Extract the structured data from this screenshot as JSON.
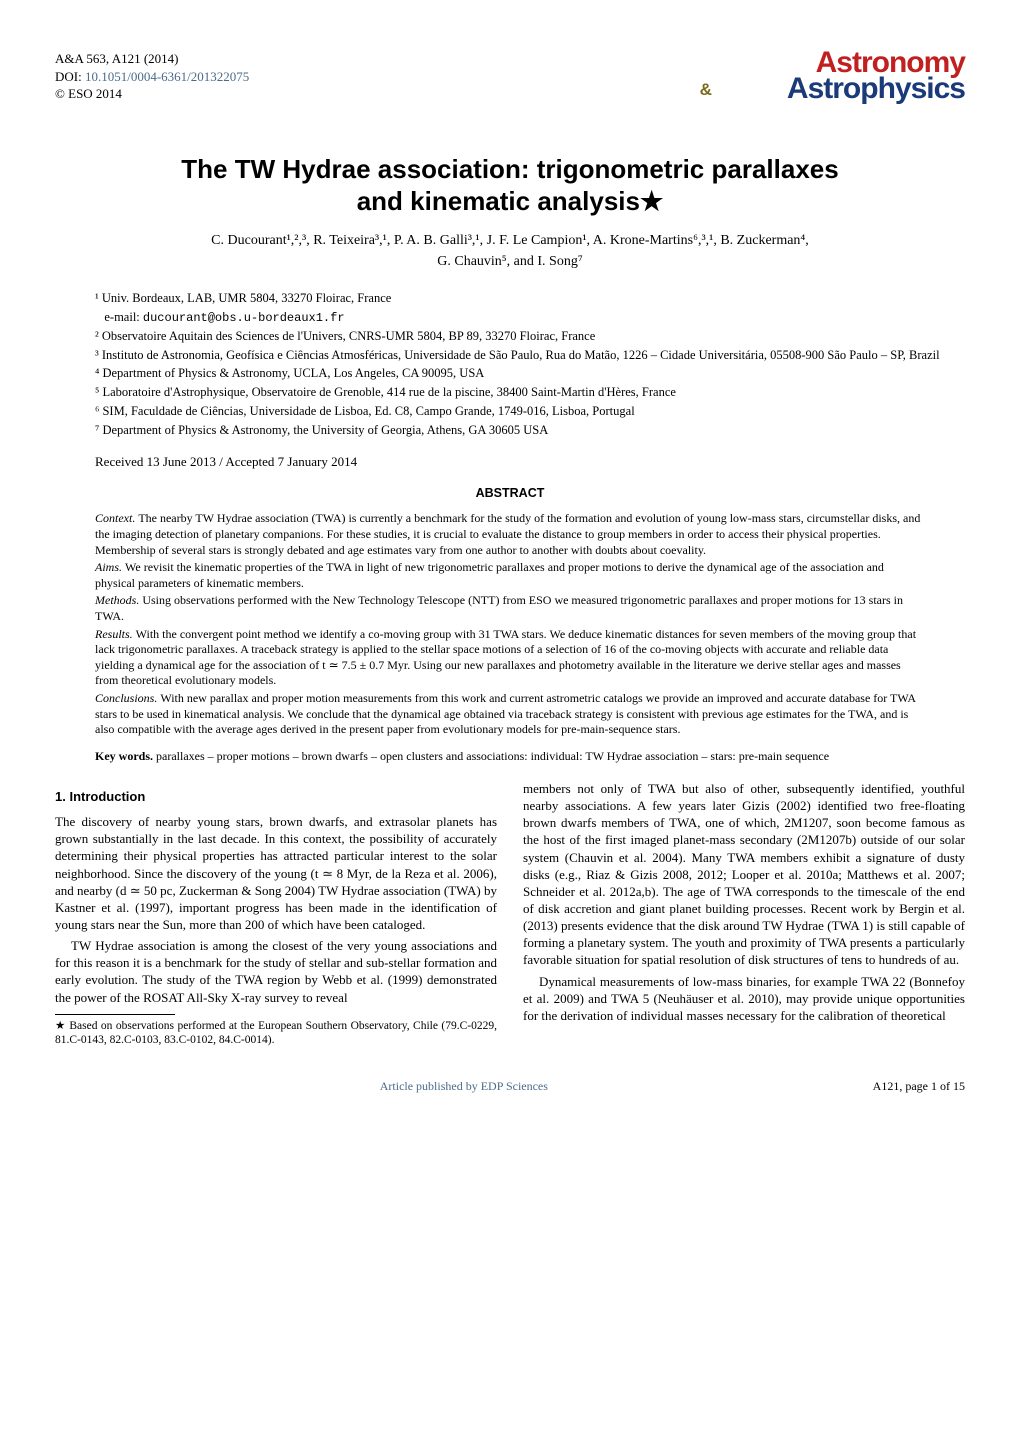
{
  "header": {
    "journal_ref": "A&A 563, A121 (2014)",
    "doi_label": "DOI: ",
    "doi_link": "10.1051/0004-6361/201322075",
    "copyright": "© ESO 2014",
    "logo_top": "Astronomy",
    "logo_amp": "&",
    "logo_bot": "Astrophysics"
  },
  "title_line1": "The TW Hydrae association: trigonometric parallaxes",
  "title_line2": "and kinematic analysis★",
  "authors_line1": "C. Ducourant¹,²,³, R. Teixeira³,¹, P. A. B. Galli³,¹, J. F. Le Campion¹, A. Krone-Martins⁶,³,¹, B. Zuckerman⁴,",
  "authors_line2": "G. Chauvin⁵, and I. Song⁷",
  "affiliations": [
    "¹ Univ. Bordeaux, LAB, UMR 5804, 33270 Floirac, France",
    "   e-mail: ducourant@obs.u-bordeaux1.fr",
    "² Observatoire Aquitain des Sciences de l'Univers, CNRS-UMR 5804, BP 89, 33270 Floirac, France",
    "³ Instituto de Astronomia, Geofísica e Ciências Atmosféricas, Universidade de São Paulo, Rua do Matão, 1226 – Cidade Universitária, 05508-900 São Paulo – SP, Brazil",
    "⁴ Department of Physics & Astronomy, UCLA, Los Angeles, CA 90095, USA",
    "⁵ Laboratoire d'Astrophysique, Observatoire de Grenoble, 414 rue de la piscine, 38400 Saint-Martin d'Hères, France",
    "⁶ SIM, Faculdade de Ciências, Universidade de Lisboa, Ed. C8, Campo Grande, 1749-016, Lisboa, Portugal",
    "⁷ Department of Physics & Astronomy, the University of Georgia, Athens, GA 30605 USA"
  ],
  "dates": "Received 13 June 2013 / Accepted 7 January 2014",
  "abstract_header": "ABSTRACT",
  "abstract": {
    "context": "The nearby TW Hydrae association (TWA) is currently a benchmark for the study of the formation and evolution of young low-mass stars, circumstellar disks, and the imaging detection of planetary companions. For these studies, it is crucial to evaluate the distance to group members in order to access their physical properties. Membership of several stars is strongly debated and age estimates vary from one author to another with doubts about coevality.",
    "aims": "We revisit the kinematic properties of the TWA in light of new trigonometric parallaxes and proper motions to derive the dynamical age of the association and physical parameters of kinematic members.",
    "methods": "Using observations performed with the New Technology Telescope (NTT) from ESO we measured trigonometric parallaxes and proper motions for 13 stars in TWA.",
    "results": "With the convergent point method we identify a co-moving group with 31 TWA stars. We deduce kinematic distances for seven members of the moving group that lack trigonometric parallaxes. A traceback strategy is applied to the stellar space motions of a selection of 16 of the co-moving objects with accurate and reliable data yielding a dynamical age for the association of t ≃ 7.5 ± 0.7 Myr. Using our new parallaxes and photometry available in the literature we derive stellar ages and masses from theoretical evolutionary models.",
    "conclusions": "With new parallax and proper motion measurements from this work and current astrometric catalogs we provide an improved and accurate database for TWA stars to be used in kinematical analysis. We conclude that the dynamical age obtained via traceback strategy is consistent with previous age estimates for the TWA, and is also compatible with the average ages derived in the present paper from evolutionary models for pre-main-sequence stars."
  },
  "keywords_label": "Key words.",
  "keywords": "parallaxes – proper motions – brown dwarfs – open clusters and associations: individual: TW Hydrae association – stars: pre-main sequence",
  "section1_header": "1. Introduction",
  "col_left": {
    "p1": "The discovery of nearby young stars, brown dwarfs, and extrasolar planets has grown substantially in the last decade. In this context, the possibility of accurately determining their physical properties has attracted particular interest to the solar neighborhood. Since the discovery of the young (t ≃ 8 Myr, de la Reza et al. 2006), and nearby (d ≃ 50 pc, Zuckerman & Song 2004) TW Hydrae association (TWA) by Kastner et al. (1997), important progress has been made in the identification of young stars near the Sun, more than 200 of which have been cataloged.",
    "p2": "TW Hydrae association is among the closest of the very young associations and for this reason it is a benchmark for the study of stellar and sub-stellar formation and early evolution. The study of the TWA region by Webb et al. (1999) demonstrated the power of the ROSAT All-Sky X-ray survey to reveal"
  },
  "footnote": "★ Based on observations performed at the European Southern Observatory, Chile (79.C-0229, 81.C-0143, 82.C-0103, 83.C-0102, 84.C-0014).",
  "col_right": {
    "p1": "members not only of TWA but also of other, subsequently identified, youthful nearby associations. A few years later Gizis (2002) identified two free-floating brown dwarfs members of TWA, one of which, 2M1207, soon become famous as the host of the first imaged planet-mass secondary (2M1207b) outside of our solar system (Chauvin et al. 2004). Many TWA members exhibit a signature of dusty disks (e.g., Riaz & Gizis 2008, 2012; Looper et al. 2010a; Matthews et al. 2007; Schneider et al. 2012a,b). The age of TWA corresponds to the timescale of the end of disk accretion and giant planet building processes. Recent work by Bergin et al. (2013) presents evidence that the disk around TW Hydrae (TWA 1) is still capable of forming a planetary system. The youth and proximity of TWA presents a particularly favorable situation for spatial resolution of disk structures of tens to hundreds of au.",
    "p2": "Dynamical measurements of low-mass binaries, for example TWA 22 (Bonnefoy et al. 2009) and TWA 5 (Neuhäuser et al. 2010), may provide unique opportunities for the derivation of individual masses necessary for the calibration of theoretical"
  },
  "footer": {
    "center": "Article published by EDP Sciences",
    "right": "A121, page 1 of 15"
  },
  "colors": {
    "link": "#4a6b8a",
    "logo_red": "#c02020",
    "logo_blue": "#1a3a7a",
    "logo_amp": "#7a6a1a",
    "background": "#ffffff",
    "text": "#000000"
  }
}
